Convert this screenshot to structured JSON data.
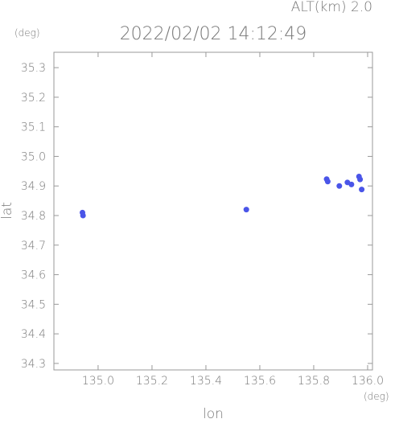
{
  "chart_data": {
    "type": "scatter",
    "title": "2022/02/02 14:12:49",
    "subtitle": "ALT(km) 2.0",
    "y_unit": "(deg)",
    "x_unit": "(deg)",
    "x_label": "lon",
    "y_label": "lat",
    "xlim": [
      134.836,
      136.018
    ],
    "ylim": [
      34.278,
      35.352
    ],
    "xticks": [
      {
        "value": 135.0,
        "label": "135.0"
      },
      135.2,
      135.4,
      135.6,
      135.8,
      {
        "value": 136.0,
        "label": "136.0"
      }
    ],
    "yticks": [
      35.3,
      35.2,
      35.1,
      {
        "value": 35.0,
        "label": "35.0"
      },
      34.9,
      34.8,
      34.7,
      34.6,
      34.5,
      34.4,
      34.3
    ],
    "series": [
      {
        "color": "#4a55e8",
        "x": [
          135.848,
          135.852,
          135.925,
          135.94,
          135.968,
          135.972,
          135.978,
          134.942,
          134.944,
          135.55,
          135.895
        ],
        "y": [
          34.923,
          34.915,
          34.912,
          34.905,
          34.932,
          34.922,
          34.888,
          34.81,
          34.8,
          34.82,
          34.9
        ]
      }
    ]
  }
}
